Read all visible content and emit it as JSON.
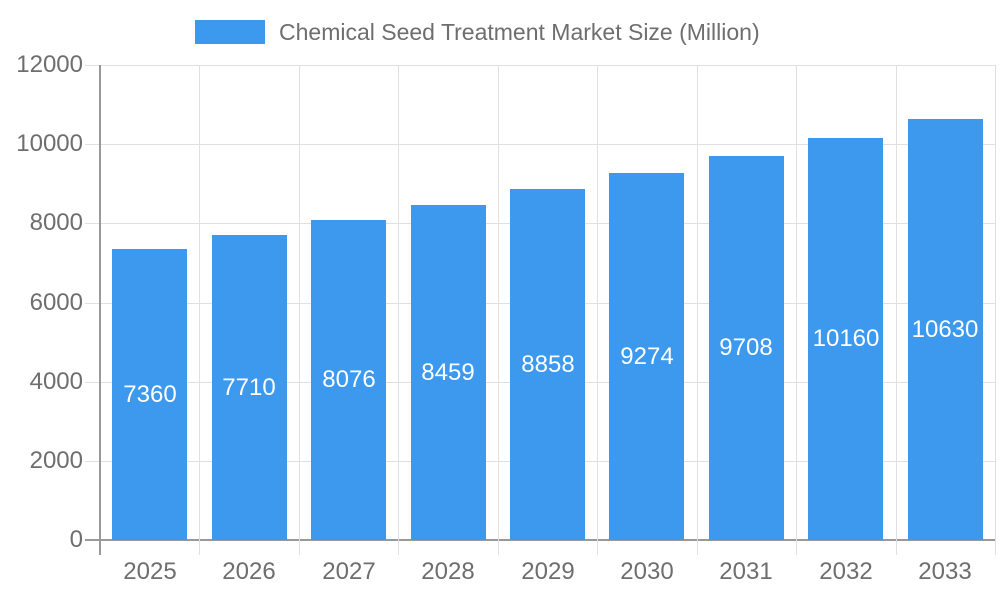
{
  "legend": {
    "label": "Chemical Seed Treatment Market Size (Million)"
  },
  "colors": {
    "bar": "#3C99EE",
    "bar_label": "#FFFFFF",
    "axis_line": "#999999",
    "gridline": "#E0E0E0",
    "text_gray": "#6E6E6E"
  },
  "chart_data": {
    "type": "bar",
    "title": "Chemical Seed Treatment Market Size (Million)",
    "categories": [
      "2025",
      "2026",
      "2027",
      "2028",
      "2029",
      "2030",
      "2031",
      "2032",
      "2033"
    ],
    "values": [
      7360,
      7710,
      8076,
      8459,
      8858,
      9274,
      9708,
      10160,
      10630
    ],
    "xlabel": "",
    "ylabel": "",
    "ylim": [
      0,
      12000
    ],
    "yticks": [
      0,
      2000,
      4000,
      6000,
      8000,
      10000,
      12000
    ],
    "grid": true,
    "legend_position": "top",
    "value_labels": "inside-center",
    "bar_color": "#3C99EE"
  }
}
